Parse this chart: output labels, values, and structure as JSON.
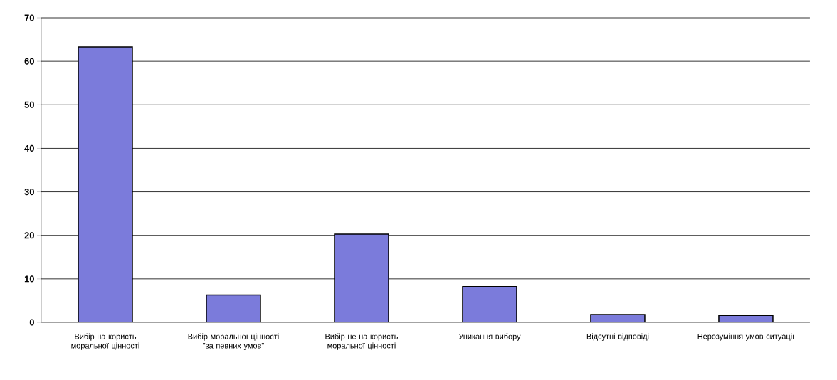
{
  "chart_data": {
    "type": "bar",
    "categories": [
      "Вибір на користь моральної цінності",
      "Вибір моральної цінності \"за певних умов\"",
      "Вибір не на користь моральної цінності",
      "Уникання вибору",
      "Відсутні відповіді",
      "Нерозуміння умов ситуації"
    ],
    "values": [
      63.3,
      6.3,
      20.3,
      8.2,
      1.8,
      1.6
    ],
    "color": "#7b7bdb",
    "ylim": [
      0,
      70
    ],
    "yticks": [
      0,
      10,
      20,
      30,
      40,
      50,
      60,
      70
    ],
    "grid": "y"
  }
}
